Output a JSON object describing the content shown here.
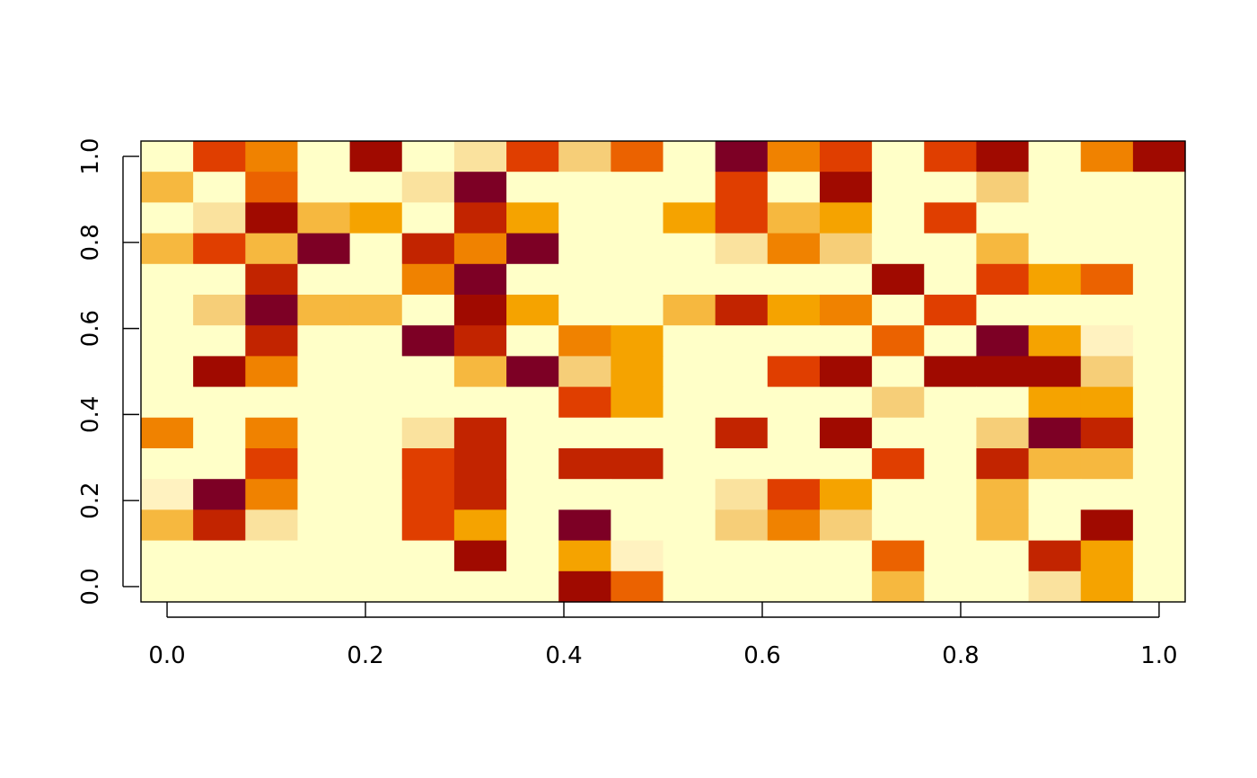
{
  "chart_data": {
    "type": "heatmap",
    "title": "",
    "xlabel": "",
    "ylabel": "",
    "xlim": [
      -0.0263,
      1.0263
    ],
    "ylim": [
      -0.0357,
      1.0357
    ],
    "x_ticks": [
      0.0,
      0.2,
      0.4,
      0.6,
      0.8,
      1.0
    ],
    "x_tick_labels": [
      "0.0",
      "0.2",
      "0.4",
      "0.6",
      "0.8",
      "1.0"
    ],
    "y_ticks": [
      0.0,
      0.2,
      0.4,
      0.6,
      0.8,
      1.0
    ],
    "y_tick_labels": [
      "0.0",
      "0.2",
      "0.4",
      "0.6",
      "0.8",
      "1.0"
    ],
    "n_cols": 20,
    "n_rows": 15,
    "grid": false,
    "legend": "none",
    "palette": [
      "#FFFFC8",
      "#FFF2C0",
      "#FAE29E",
      "#F6CE78",
      "#F6B83F",
      "#F5A300",
      "#F08200",
      "#EB6200",
      "#E03E00",
      "#C22400",
      "#A00A00",
      "#7D0025"
    ],
    "level_scale": "0 = lightest (#FFFFC8) ... 11 = darkest (#7D0025)",
    "rows_top_to_bottom": [
      [
        0,
        8,
        6,
        0,
        10,
        0,
        2,
        8,
        3,
        7,
        0,
        11,
        6,
        8,
        0,
        8,
        10,
        0,
        6,
        10
      ],
      [
        4,
        0,
        7,
        0,
        0,
        2,
        11,
        0,
        0,
        0,
        0,
        8,
        0,
        10,
        0,
        0,
        3,
        0,
        0,
        0
      ],
      [
        0,
        2,
        10,
        4,
        5,
        0,
        9,
        5,
        0,
        0,
        5,
        8,
        4,
        5,
        0,
        8,
        0,
        0,
        0,
        0
      ],
      [
        4,
        8,
        4,
        11,
        0,
        9,
        6,
        11,
        0,
        0,
        0,
        2,
        6,
        3,
        0,
        0,
        4,
        0,
        0,
        0
      ],
      [
        0,
        0,
        9,
        0,
        0,
        6,
        11,
        0,
        0,
        0,
        0,
        0,
        0,
        0,
        10,
        0,
        8,
        5,
        7,
        0
      ],
      [
        0,
        3,
        11,
        4,
        4,
        0,
        10,
        5,
        0,
        0,
        4,
        9,
        5,
        6,
        0,
        8,
        0,
        0,
        0,
        0
      ],
      [
        0,
        0,
        9,
        0,
        0,
        11,
        9,
        0,
        6,
        5,
        0,
        0,
        0,
        0,
        7,
        0,
        11,
        5,
        1,
        0
      ],
      [
        0,
        10,
        6,
        0,
        0,
        0,
        4,
        11,
        3,
        5,
        0,
        0,
        8,
        10,
        0,
        10,
        10,
        10,
        3,
        0
      ],
      [
        0,
        0,
        0,
        0,
        0,
        0,
        0,
        0,
        8,
        5,
        0,
        0,
        0,
        0,
        3,
        0,
        0,
        5,
        5,
        0
      ],
      [
        6,
        0,
        6,
        0,
        0,
        2,
        9,
        0,
        0,
        0,
        0,
        9,
        0,
        10,
        0,
        0,
        3,
        11,
        9,
        0
      ],
      [
        0,
        0,
        8,
        0,
        0,
        8,
        9,
        0,
        9,
        9,
        0,
        0,
        0,
        0,
        8,
        0,
        9,
        4,
        4,
        0
      ],
      [
        1,
        11,
        6,
        0,
        0,
        8,
        9,
        0,
        0,
        0,
        0,
        2,
        8,
        5,
        0,
        0,
        4,
        0,
        0,
        0
      ],
      [
        4,
        9,
        2,
        0,
        0,
        8,
        5,
        0,
        11,
        0,
        0,
        3,
        6,
        3,
        0,
        0,
        4,
        0,
        10,
        0
      ],
      [
        0,
        0,
        0,
        0,
        0,
        0,
        10,
        0,
        5,
        1,
        0,
        0,
        0,
        0,
        7,
        0,
        0,
        9,
        5,
        0
      ],
      [
        0,
        0,
        0,
        0,
        0,
        0,
        0,
        0,
        10,
        7,
        0,
        0,
        0,
        0,
        4,
        0,
        0,
        2,
        5,
        0
      ]
    ]
  }
}
